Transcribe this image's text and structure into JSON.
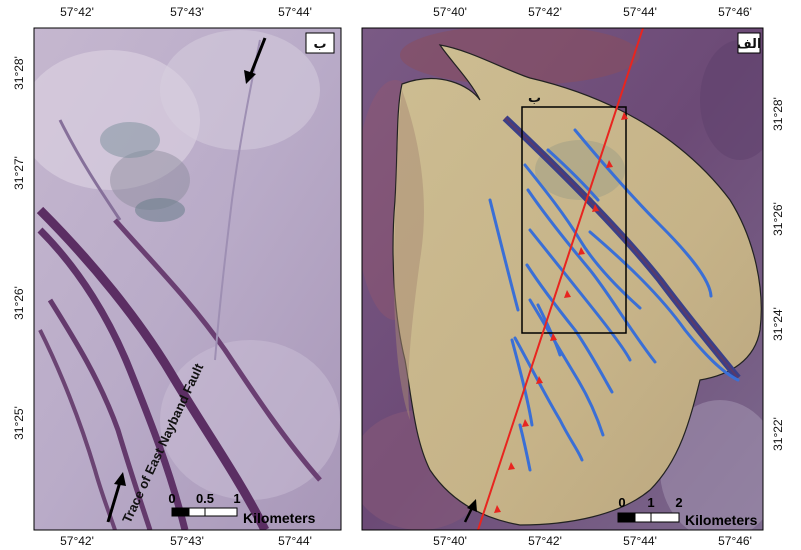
{
  "panel_b": {
    "tag": "ب",
    "x_ticks": [
      "57°42'",
      "57°43'",
      "57°44'"
    ],
    "y_ticks": [
      "31°28'",
      "31°27'",
      "31°26'",
      "31°25'"
    ],
    "fault_label": "Trace of East Nayband Fault",
    "scale": {
      "ticks": [
        "0",
        "0.5",
        "1"
      ],
      "unit": "Kilometers"
    }
  },
  "panel_a": {
    "tag": "الف",
    "inset_tag": "ب",
    "x_ticks": [
      "57°40'",
      "57°42'",
      "57°44'",
      "57°46'"
    ],
    "y_ticks": [
      "31°28'",
      "31°26'",
      "31°24'",
      "31°22'"
    ],
    "scale": {
      "ticks": [
        "0",
        "1",
        "2"
      ],
      "unit": "Kilometers"
    }
  },
  "colors": {
    "fault": "#e8251f",
    "streams": "#3a6fd6",
    "fan_fill": "#c9b78a",
    "background_terrain": "#6f4a78",
    "panel_b_terrain": "#b7a9c9"
  }
}
